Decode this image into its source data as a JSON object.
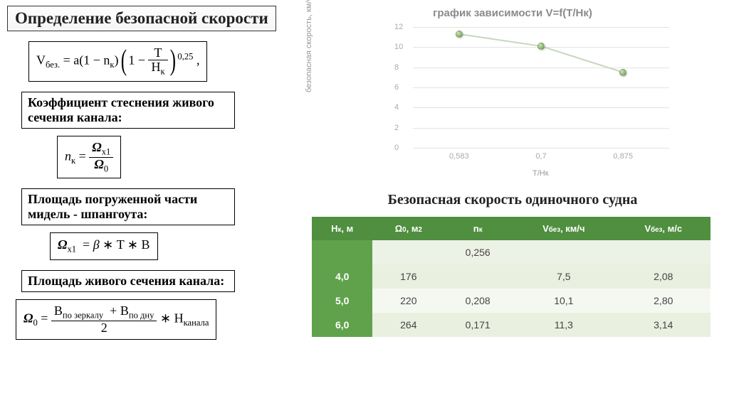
{
  "title": "Определение безопасной скорости",
  "formula_main_html": "V<span class='sub'>без.</span> = a(1 − n<span class='sub'>к</span>)<span class='bigparen'>(</span>1 − <span class='frac'><span>T</span><span class='den'>H<span class='sub'>к</span></span></span><span class='bigparen'>)</span><span class='sup'>0,25</span>&nbsp;,",
  "label_coeff": "Коэффициент стеснения живого сечения канала:",
  "formula_nk_html": "<i>n</i><span class='sub'>к</span> = <span class='frac'><span><i><b>Ω</b></i><span class='sub'>x1</span></span><span class='den'><i><b>Ω</b></i><span class='sub'>0</span></span></span>",
  "label_midel": "Площадь погруженной части мидель - шпангоута:",
  "formula_ox1_html": "<i><b>Ω</b></i><span class='sub'>x1</span>&nbsp;&nbsp;= <i>β</i> ∗ T ∗ B",
  "label_omega0": "Площадь живого сечения канала:",
  "formula_o0_html": "<i><b>Ω</b></i><span class='sub'>0</span> = <span class='frac'><span>B<span class='sub'>по зеркалу</span>&nbsp;&nbsp;+ B<span class='sub'>по дну</span></span><span class='den'>2</span></span> ∗ Н<span class='sub'>канала</span>",
  "chart": {
    "title": "график зависимости V=f(T/Hк)",
    "ylabel": "безопасная скорость, км/ч",
    "xlabel": "T/Нк",
    "ylim": [
      0,
      12
    ],
    "yticks": [
      0,
      2,
      4,
      6,
      8,
      10,
      12
    ],
    "xcats": [
      "0,583",
      "0,7",
      "0,875"
    ],
    "xpos_pct": [
      18,
      50,
      82
    ],
    "values": [
      11.3,
      10.1,
      7.5
    ],
    "line_color": "#c8d7bd",
    "marker_fill": "#8fb974",
    "grid_color": "#e3e3e3",
    "tick_color": "#aaaaaa",
    "title_color": "#8a8a8a"
  },
  "table_title": "Безопасная скорость одиночного судна",
  "table": {
    "header_bg": "#4f8f3f",
    "hk_bg": "#5fa24b",
    "alt_bg": "#e9f0e0",
    "row_bg": "#f5f8f0",
    "headers_html": [
      "H<span class='hsub'>к</span>, м",
      "Ω<span class='hsub'>0</span>, м<span class='hsub'>2</span>",
      "n<span class='hsub'>к</span>",
      "V<span class='hsub'>без</span>, км/ч",
      "V<span class='hsub'>без</span>, м/с"
    ],
    "extra_nk": "0,256",
    "rows": [
      {
        "hk": "4,0",
        "o0": "176",
        "nk": "",
        "vkm": "7,5",
        "vms": "2,08",
        "alt": true
      },
      {
        "hk": "5,0",
        "o0": "220",
        "nk": "0,208",
        "vkm": "10,1",
        "vms": "2,80",
        "alt": false
      },
      {
        "hk": "6,0",
        "o0": "264",
        "nk": "0,171",
        "vkm": "11,3",
        "vms": "3,14",
        "alt": true
      }
    ]
  }
}
